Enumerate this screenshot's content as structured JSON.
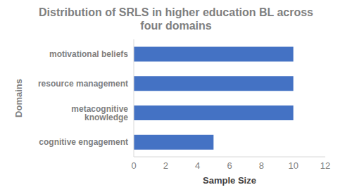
{
  "chart_data": {
    "type": "bar",
    "title": "Distribution of SRLS in higher education BL across four domains",
    "orientation": "horizontal",
    "categories": [
      "motivational beliefs",
      "resource management",
      "metacognitive knowledge",
      "cognitive engagement"
    ],
    "values": [
      10,
      10,
      10,
      5
    ],
    "color": "#4472c4",
    "x_label": "Sample Size",
    "y_label": "Domains",
    "xlim": [
      0,
      12
    ],
    "xticks": [
      0,
      2,
      4,
      6,
      8,
      10,
      12
    ],
    "grid": false
  }
}
